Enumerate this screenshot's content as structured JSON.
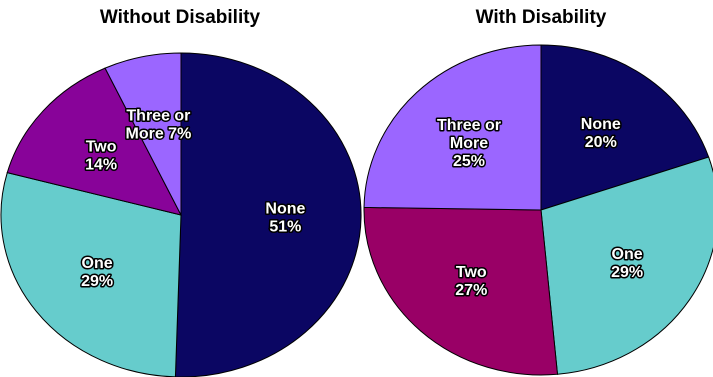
{
  "chart_data": [
    {
      "type": "pie",
      "title": "Without Disability",
      "start": "top, clockwise",
      "slices": [
        {
          "label": [
            "None",
            "51%"
          ],
          "value": 51,
          "color": "#0b0663"
        },
        {
          "label": [
            "One",
            "29%"
          ],
          "value": 29,
          "color": "#66cccc"
        },
        {
          "label": [
            "Two",
            "14%"
          ],
          "value": 14,
          "color": "#880399"
        },
        {
          "label": [
            "Three or",
            "More 7%"
          ],
          "value": 7,
          "color": "#9b66ff"
        }
      ]
    },
    {
      "type": "pie",
      "title": "With Disability",
      "start": "top, clockwise",
      "slices": [
        {
          "label": [
            "None",
            "20%"
          ],
          "value": 20,
          "color": "#0b0663"
        },
        {
          "label": [
            "One",
            "29%"
          ],
          "value": 29,
          "color": "#66cccc"
        },
        {
          "label": [
            "Two",
            "27%"
          ],
          "value": 27,
          "color": "#990066"
        },
        {
          "label": [
            "Three or",
            "More",
            "25%"
          ],
          "value": 25,
          "color": "#9b66ff"
        }
      ]
    }
  ]
}
